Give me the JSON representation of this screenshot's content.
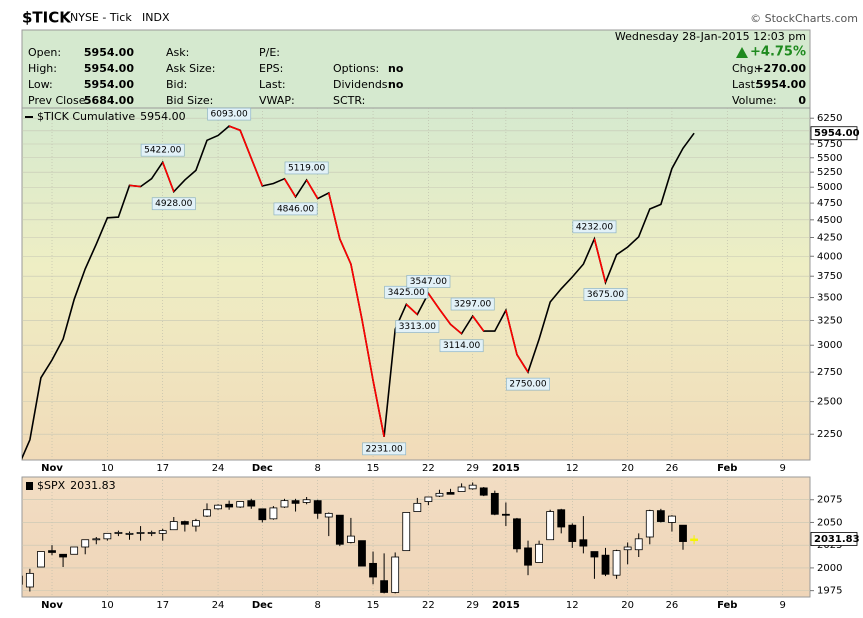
{
  "header": {
    "symbol": "$TICK",
    "exchange": "NYSE - Tick",
    "code": "INDX",
    "source": "© StockCharts.com"
  },
  "quote": {
    "columns": [
      [
        {
          "label": "Open:",
          "value": "5954.00"
        },
        {
          "label": "High:",
          "value": "5954.00"
        },
        {
          "label": "Low:",
          "value": "5954.00"
        },
        {
          "label": "Prev Close:",
          "value": "5684.00"
        }
      ],
      [
        {
          "label": "Ask:"
        },
        {
          "label": "Ask Size:"
        },
        {
          "label": "Bid:"
        },
        {
          "label": "Bid Size:"
        }
      ],
      [
        {
          "label": "P/E:"
        },
        {
          "label": "EPS:"
        },
        {
          "label": "Last:"
        },
        {
          "label": "VWAP:"
        }
      ],
      [
        {
          "label": "Options:",
          "value": "no"
        },
        {
          "label": "Dividends:",
          "value": "no"
        },
        {
          "label": "SCTR:"
        }
      ]
    ],
    "right": {
      "date": "Wednesday 28-Jan-2015 12:03 pm",
      "change_pct": "+4.75%",
      "items": [
        {
          "label": "Chg:",
          "value": "+270.00"
        },
        {
          "label": "Last:",
          "value": "5954.00"
        },
        {
          "label": "Volume:",
          "value": "0"
        }
      ]
    }
  },
  "chart_data": [
    {
      "type": "line",
      "categories": [
        null,
        null,
        null,
        "Nov",
        null,
        null,
        null,
        null,
        "10",
        null,
        null,
        null,
        null,
        "17",
        null,
        null,
        null,
        null,
        "24",
        null,
        null,
        null,
        "Dec",
        null,
        null,
        null,
        null,
        "8",
        null,
        null,
        null,
        null,
        "15",
        null,
        null,
        null,
        null,
        "22",
        null,
        null,
        null,
        "29",
        null,
        null,
        "2015",
        null,
        null,
        null,
        null,
        null,
        "12",
        null,
        null,
        null,
        null,
        "20",
        null,
        null,
        null,
        "26",
        null,
        null,
        null,
        null,
        "Feb",
        null,
        null,
        null,
        null,
        "9"
      ],
      "series": [
        {
          "name": "$TICK Cumulative",
          "last_label": "5954.00",
          "up_color": "#000000",
          "down_color": "#ff0000",
          "values": [
            2035,
            2210,
            2700,
            2860,
            3060,
            3480,
            3840,
            4160,
            4530,
            4540,
            5030,
            5010,
            5140,
            5422,
            4928,
            5120,
            5280,
            5820,
            5910,
            6093,
            6010,
            5490,
            5020,
            5060,
            5140,
            4846,
            5119,
            4820,
            4910,
            4230,
            3900,
            3260,
            2680,
            2231,
            3160,
            3425,
            3313,
            3547,
            3370,
            3210,
            3114,
            3297,
            3140,
            3140,
            3360,
            2910,
            2750,
            3060,
            3450,
            3600,
            3740,
            3900,
            4232,
            3675,
            4020,
            4120,
            4260,
            4660,
            4730,
            5310,
            5670,
            5954,
            null,
            null,
            null,
            null,
            null,
            null,
            null,
            null
          ],
          "value_labels": [
            null,
            null,
            null,
            null,
            null,
            null,
            null,
            null,
            null,
            null,
            null,
            null,
            null,
            "5422.00",
            "4928.00",
            null,
            null,
            null,
            null,
            "6093.00",
            null,
            null,
            null,
            null,
            null,
            "4846.00",
            "5119.00",
            null,
            null,
            null,
            null,
            null,
            null,
            "2231.00",
            null,
            "3425.00",
            "3313.00",
            "3547.00",
            null,
            null,
            "3114.00",
            "3297.00",
            null,
            null,
            null,
            null,
            "2750.00",
            null,
            null,
            null,
            null,
            null,
            "4232.00",
            "3675.00",
            null,
            null,
            null,
            null,
            null,
            null,
            null,
            null,
            null,
            null,
            null,
            null,
            null,
            null,
            null,
            null
          ]
        }
      ],
      "ylim": [
        2070,
        6460
      ],
      "yticks": [
        2250,
        2500,
        2750,
        3000,
        3250,
        3500,
        3750,
        4000,
        4250,
        4500,
        4750,
        5000,
        5250,
        5500,
        5750,
        6000,
        6250
      ],
      "log_scale": true,
      "grid": true
    },
    {
      "type": "candlestick",
      "categories": [
        null,
        null,
        null,
        "Nov",
        null,
        null,
        null,
        null,
        "10",
        null,
        null,
        null,
        null,
        "17",
        null,
        null,
        null,
        null,
        "24",
        null,
        null,
        null,
        "Dec",
        null,
        null,
        null,
        null,
        "8",
        null,
        null,
        null,
        null,
        "15",
        null,
        null,
        null,
        null,
        "22",
        null,
        null,
        null,
        "29",
        null,
        null,
        "2015",
        null,
        null,
        null,
        null,
        null,
        "12",
        null,
        null,
        null,
        null,
        "20",
        null,
        null,
        null,
        "26",
        null,
        null,
        null,
        null,
        "Feb",
        null,
        null,
        null,
        null,
        "9"
      ],
      "series": [
        {
          "name": "$SPX",
          "last_label": "2031.83",
          "open": [
            1991,
            1979,
            2001,
            2019,
            2015,
            2015,
            2023,
            2032,
            2032,
            2038,
            2037,
            2039,
            2039,
            2038,
            2042,
            2051,
            2046,
            2057,
            2065,
            2070,
            2067,
            2074,
            2065,
            2054,
            2067,
            2074,
            2072,
            2074,
            2056,
            2058,
            2028,
            2030,
            2005,
            1986,
            1973,
            2019,
            2062,
            2073,
            2079,
            2083,
            2084,
            2087,
            2088,
            2082,
            2059,
            2054,
            2022,
            2006,
            2031,
            2064,
            2047,
            2031,
            2018,
            2014,
            1992,
            2020,
            2020,
            2034,
            2063,
            2050,
            2047,
            2030,
            null,
            null,
            null,
            null,
            null,
            null,
            null,
            null
          ],
          "high": [
            1991,
            1999,
            2018,
            2025,
            2015,
            2023,
            2031,
            2034,
            2038,
            2041,
            2040,
            2046,
            2041,
            2043,
            2056,
            2052,
            2054,
            2071,
            2070,
            2074,
            2073,
            2076,
            2065,
            2068,
            2076,
            2076,
            2078,
            2075,
            2061,
            2058,
            2055,
            2030,
            2018,
            2016,
            2017,
            2061,
            2077,
            2078,
            2086,
            2087,
            2093,
            2094,
            2089,
            2085,
            2072,
            2055,
            2030,
            2030,
            2064,
            2065,
            2049,
            2057,
            2018,
            2022,
            2020,
            2028,
            2038,
            2064,
            2065,
            2058,
            2047,
            2036,
            null,
            null,
            null,
            null,
            null,
            null,
            null,
            null
          ],
          "low": [
            1974,
            1974,
            2001,
            2014,
            2001,
            2015,
            2015,
            2026,
            2030,
            2035,
            2031,
            2030,
            2035,
            2030,
            2042,
            2040,
            2040,
            2056,
            2064,
            2064,
            2066,
            2065,
            2050,
            2053,
            2066,
            2062,
            2070,
            2054,
            2035,
            2024,
            2027,
            2002,
            1982,
            1972,
            1972,
            2019,
            2062,
            2069,
            2078,
            2081,
            2084,
            2086,
            2079,
            2058,
            2046,
            2017,
            1992,
            2006,
            2031,
            2038,
            2022,
            2016,
            1988,
            1991,
            1988,
            2004,
            2012,
            2026,
            2050,
            2040,
            2020,
            2026,
            null,
            null,
            null,
            null,
            null,
            null,
            null,
            null
          ],
          "close": [
            1982,
            1994,
            2018,
            2017,
            2012,
            2023,
            2031,
            2032,
            2038,
            2039,
            2038,
            2039,
            2039,
            2041,
            2051,
            2048,
            2052,
            2064,
            2069,
            2067,
            2073,
            2068,
            2053,
            2066,
            2074,
            2071,
            2075,
            2060,
            2060,
            2026,
            2035,
            2002,
            1990,
            1973,
            2012,
            2061,
            2071,
            2078,
            2082,
            2081,
            2089,
            2091,
            2080,
            2059,
            2058,
            2021,
            2003,
            2026,
            2062,
            2045,
            2029,
            2024,
            2012,
            1993,
            2019,
            2023,
            2032,
            2063,
            2051,
            2057,
            2029,
            2031.83,
            null,
            null,
            null,
            null,
            null,
            null,
            null,
            null
          ]
        }
      ],
      "up_color": "#ffffff",
      "down_color": "#000000",
      "highlight_color": "#f5f500",
      "ylim": [
        1968,
        2100
      ],
      "yticks": [
        1975,
        2000,
        2025,
        2050,
        2075
      ],
      "grid": true
    }
  ]
}
